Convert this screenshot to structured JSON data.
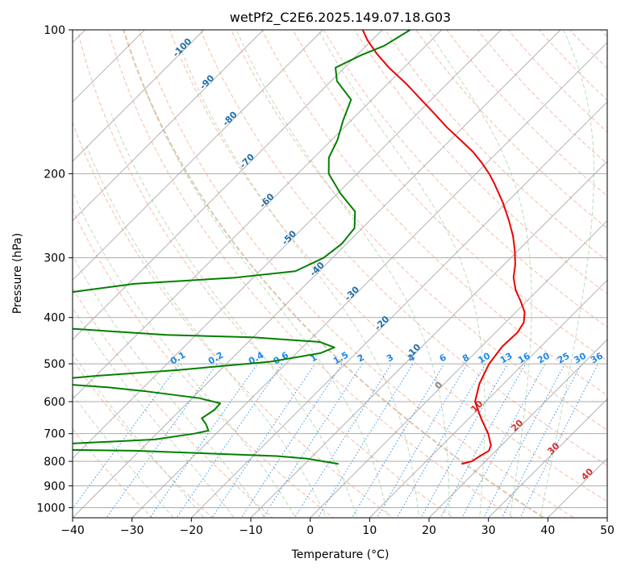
{
  "chart_data": {
    "type": "skewt",
    "title": "wetPf2_C2E6.2025.149.07.18.G03",
    "xlabel": "Temperature (°C)",
    "ylabel": "Pressure (hPa)",
    "xlim": [
      -40,
      50
    ],
    "ylim": [
      1050,
      100
    ],
    "y_scale": "log",
    "x_ticks": [
      -40,
      -30,
      -20,
      -10,
      0,
      10,
      20,
      30,
      40,
      50
    ],
    "x_tick_labels": [
      "−40",
      "−30",
      "−20",
      "−10",
      "0",
      "10",
      "20",
      "30",
      "40",
      "50"
    ],
    "y_ticks": [
      1000,
      900,
      800,
      700,
      600,
      500,
      400,
      300,
      200,
      100
    ],
    "y_tick_labels": [
      "1000",
      "900",
      "800",
      "700",
      "600",
      "500",
      "400",
      "300",
      "200",
      "100"
    ],
    "isotherm_labels": [
      {
        "t": -100,
        "text": "-100"
      },
      {
        "t": -90,
        "text": "-90"
      },
      {
        "t": -80,
        "text": "-80"
      },
      {
        "t": -70,
        "text": "-70"
      },
      {
        "t": -60,
        "text": "-60"
      },
      {
        "t": -50,
        "text": "-50"
      },
      {
        "t": -40,
        "text": "-40"
      },
      {
        "t": -30,
        "text": "-30"
      },
      {
        "t": -20,
        "text": "-20"
      },
      {
        "t": -10,
        "text": "-10"
      }
    ],
    "mixing_ratio_labels": [
      {
        "w": 0.1,
        "text": "0.1"
      },
      {
        "w": 0.2,
        "text": "0.2"
      },
      {
        "w": 0.4,
        "text": "0.4"
      },
      {
        "w": 0.6,
        "text": "0.6"
      },
      {
        "w": 1,
        "text": "1"
      },
      {
        "w": 1.5,
        "text": "1.5"
      },
      {
        "w": 2,
        "text": "2"
      },
      {
        "w": 3,
        "text": "3"
      },
      {
        "w": 4,
        "text": "4"
      },
      {
        "w": 6,
        "text": "6"
      },
      {
        "w": 8,
        "text": "8"
      },
      {
        "w": 10,
        "text": "10"
      },
      {
        "w": 13,
        "text": "13"
      },
      {
        "w": 16,
        "text": "16"
      },
      {
        "w": 20,
        "text": "20"
      },
      {
        "w": 25,
        "text": "25"
      },
      {
        "w": 30,
        "text": "30"
      },
      {
        "w": 36,
        "text": "36"
      }
    ],
    "positive_isotherm_labels": [
      {
        "t": 0,
        "text": "0"
      },
      {
        "t": 10,
        "text": "10"
      },
      {
        "t": 20,
        "text": "20"
      },
      {
        "t": 30,
        "text": "30"
      },
      {
        "t": 40,
        "text": "40"
      }
    ],
    "series": [
      {
        "color": "#ee0000",
        "points": [
          [
            810,
            16.4
          ],
          [
            800,
            17.7
          ],
          [
            780,
            18.2
          ],
          [
            760,
            18.8
          ],
          [
            740,
            18.2
          ],
          [
            700,
            15.8
          ],
          [
            650,
            12.0
          ],
          [
            600,
            8.2
          ],
          [
            550,
            5.9
          ],
          [
            500,
            4.2
          ],
          [
            460,
            3.5
          ],
          [
            430,
            3.7
          ],
          [
            410,
            3.1
          ],
          [
            390,
            1.5
          ],
          [
            370,
            -1.0
          ],
          [
            350,
            -3.8
          ],
          [
            330,
            -6.2
          ],
          [
            310,
            -8.1
          ],
          [
            290,
            -10.5
          ],
          [
            270,
            -13.3
          ],
          [
            250,
            -16.7
          ],
          [
            230,
            -20.6
          ],
          [
            210,
            -25.2
          ],
          [
            200,
            -27.8
          ],
          [
            190,
            -30.8
          ],
          [
            180,
            -34.2
          ],
          [
            170,
            -38.3
          ],
          [
            160,
            -42.7
          ],
          [
            150,
            -47.0
          ],
          [
            140,
            -51.7
          ],
          [
            130,
            -56.7
          ],
          [
            120,
            -62.5
          ],
          [
            112,
            -67.0
          ],
          [
            105,
            -70.8
          ],
          [
            100,
            -73.3
          ]
        ]
      },
      {
        "color": "#008000",
        "points": [
          [
            810,
            -4.3
          ],
          [
            800,
            -7.3
          ],
          [
            790,
            -10.3
          ],
          [
            780,
            -16.0
          ],
          [
            760,
            -40.7
          ],
          [
            755,
            -60.0
          ],
          [
            740,
            -58.0
          ],
          [
            720,
            -39.3
          ],
          [
            700,
            -33.7
          ],
          [
            690,
            -31.8
          ],
          [
            670,
            -33.2
          ],
          [
            650,
            -35.0
          ],
          [
            625,
            -34.3
          ],
          [
            605,
            -34.4
          ],
          [
            590,
            -38.8
          ],
          [
            570,
            -49.4
          ],
          [
            560,
            -56.0
          ],
          [
            545,
            -70.0
          ],
          [
            530,
            -60.0
          ],
          [
            515,
            -47.0
          ],
          [
            495,
            -33.0
          ],
          [
            475,
            -26.0
          ],
          [
            462,
            -24.6
          ],
          [
            450,
            -28.0
          ],
          [
            440,
            -40.0
          ],
          [
            435,
            -55.0
          ],
          [
            420,
            -75.0
          ],
          [
            390,
            -90.0
          ],
          [
            360,
            -82.0
          ],
          [
            340,
            -69.0
          ],
          [
            330,
            -53.0
          ],
          [
            320,
            -44.0
          ],
          [
            300,
            -41.5
          ],
          [
            280,
            -40.8
          ],
          [
            260,
            -41.3
          ],
          [
            240,
            -44.0
          ],
          [
            220,
            -49.5
          ],
          [
            200,
            -54.8
          ],
          [
            185,
            -57.5
          ],
          [
            170,
            -59.0
          ],
          [
            155,
            -61.3
          ],
          [
            140,
            -63.5
          ],
          [
            128,
            -69.0
          ],
          [
            120,
            -71.5
          ],
          [
            113,
            -69.3
          ],
          [
            108,
            -67.0
          ],
          [
            100,
            -65.3
          ]
        ]
      }
    ]
  }
}
